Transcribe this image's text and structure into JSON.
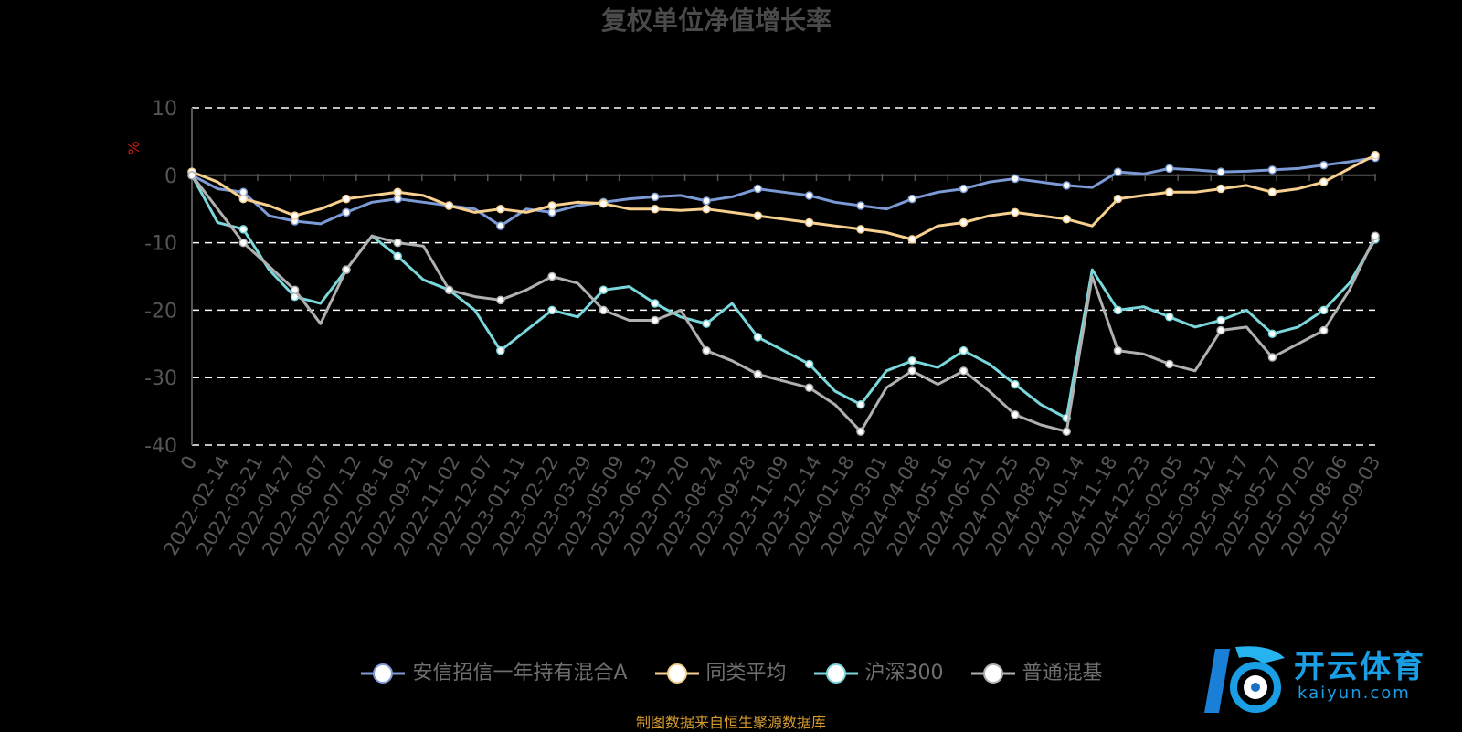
{
  "chart_data": {
    "type": "line",
    "title": "复权单位净值增长率",
    "ylabel": "%",
    "ylim": [
      -40,
      10
    ],
    "yticks": [
      10,
      0,
      -10,
      -20,
      -30,
      -40
    ],
    "grid": true,
    "legend_position": "bottom",
    "x_tick_labels": [
      "0",
      "2022-02-14",
      "2022-03-21",
      "2022-04-27",
      "2022-06-07",
      "2022-07-12",
      "2022-08-16",
      "2022-09-21",
      "2022-11-02",
      "2022-12-07",
      "2023-01-11",
      "2023-02-22",
      "2023-03-29",
      "2023-05-09",
      "2023-06-13",
      "2023-07-20",
      "2023-08-24",
      "2023-09-28",
      "2023-11-09",
      "2023-12-14",
      "2024-01-18",
      "2024-03-01",
      "2024-04-08",
      "2024-05-16",
      "2024-06-21",
      "2024-07-25",
      "2024-08-29",
      "2024-10-14",
      "2024-11-18",
      "2024-12-23",
      "2025-02-05",
      "2025-03-12",
      "2025-04-17",
      "2025-05-27",
      "2025-07-02",
      "2025-08-06",
      "2025-09-03"
    ],
    "series": [
      {
        "name": "安信招信一年持有混合A",
        "color": "#7b9ad6",
        "values": [
          0,
          -2,
          -2.5,
          -6,
          -6.8,
          -7.2,
          -5.5,
          -4,
          -3.5,
          -4,
          -4.5,
          -5,
          -7.5,
          -5,
          -5.5,
          -4.5,
          -4,
          -3.5,
          -3.2,
          -3,
          -3.8,
          -3.2,
          -2,
          -2.5,
          -3,
          -4,
          -4.5,
          -5,
          -3.5,
          -2.5,
          -2,
          -1,
          -0.5,
          -1,
          -1.5,
          -1.8,
          0.5,
          0.2,
          1,
          0.8,
          0.5,
          0.6,
          0.8,
          1,
          1.5,
          2,
          2.6
        ]
      },
      {
        "name": "同类平均",
        "color": "#f7d08f",
        "values": [
          0.5,
          -1,
          -3.5,
          -4.5,
          -6,
          -5,
          -3.5,
          -3,
          -2.5,
          -3,
          -4.5,
          -5.5,
          -5,
          -5.5,
          -4.5,
          -4,
          -4.2,
          -5,
          -5,
          -5.2,
          -5,
          -5.5,
          -6,
          -6.5,
          -7,
          -7.5,
          -8,
          -8.5,
          -9.5,
          -7.5,
          -7,
          -6,
          -5.5,
          -6,
          -6.5,
          -7.5,
          -3.5,
          -3,
          -2.5,
          -2.5,
          -2,
          -1.5,
          -2.5,
          -2,
          -1,
          1,
          3
        ]
      },
      {
        "name": "沪深300",
        "color": "#7ad8dc",
        "values": [
          0,
          -7,
          -8,
          -14,
          -18,
          -19,
          -14,
          -9,
          -12,
          -15.5,
          -17,
          -20,
          -26,
          -23,
          -20,
          -21,
          -17,
          -16.5,
          -19,
          -21,
          -22,
          -19,
          -24,
          -26,
          -28,
          -32,
          -34,
          -29,
          -27.5,
          -28.5,
          -26,
          -28,
          -31,
          -34,
          -36,
          -14,
          -20,
          -19.5,
          -21,
          -22.5,
          -21.5,
          -20,
          -23.5,
          -22.5,
          -20,
          -16,
          -9.5
        ]
      },
      {
        "name": "普通混基",
        "color": "#b0b0b0",
        "values": [
          0,
          -5,
          -10,
          -13.5,
          -17,
          -22,
          -14,
          -9,
          -10,
          -10.5,
          -17,
          -18,
          -18.5,
          -17,
          -15,
          -16,
          -20,
          -21.5,
          -21.5,
          -20,
          -26,
          -27.5,
          -29.5,
          -30.5,
          -31.5,
          -34,
          -38,
          -31.5,
          -29,
          -31,
          -29,
          -32,
          -35.5,
          -37,
          -38,
          -15,
          -26,
          -26.5,
          -28,
          -29,
          -23,
          -22.5,
          -27,
          -25,
          -23,
          -17,
          -9
        ]
      }
    ]
  },
  "source_note": "制图数据来自恒生聚源数据库",
  "logo": {
    "name": "开云体育",
    "domain": "kaiyun.com"
  }
}
